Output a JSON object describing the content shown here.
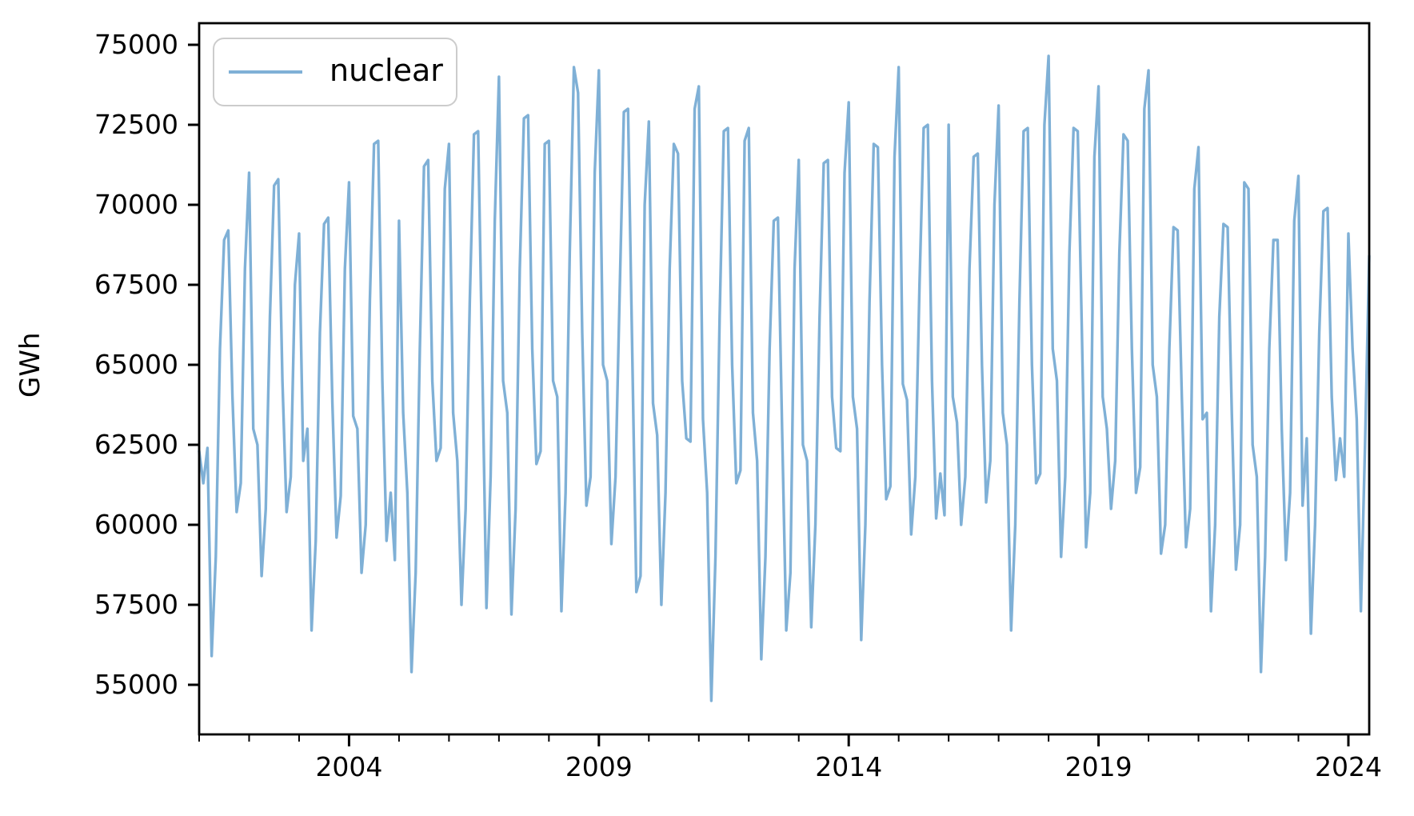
{
  "figure": {
    "background": "#ffffff",
    "ylabel": "GWh"
  },
  "legend": {
    "entries": [
      {
        "label": "nuclear",
        "color": "#7fb0d6"
      }
    ]
  },
  "chart_data": {
    "type": "line",
    "title": "",
    "xlabel": "",
    "ylabel": "GWh",
    "grid": false,
    "legend_position": "upper-left",
    "line_color": "#7fb0d6",
    "frequency": "monthly",
    "x_start": "2001-01",
    "x_end": "2024-06",
    "xlim": [
      2001.0,
      2024.4167
    ],
    "ylim": [
      53450,
      75675
    ],
    "y_ticks": [
      55000,
      57500,
      60000,
      62500,
      65000,
      67500,
      70000,
      72500,
      75000
    ],
    "x_major_ticks": [
      2004,
      2009,
      2014,
      2019,
      2024
    ],
    "x_minor_ticks": [
      2001,
      2002,
      2003,
      2005,
      2006,
      2007,
      2008,
      2010,
      2011,
      2012,
      2013,
      2015,
      2016,
      2017,
      2018,
      2020,
      2021,
      2022,
      2023
    ],
    "series": [
      {
        "name": "nuclear",
        "values": [
          62300,
          61300,
          62400,
          55900,
          59000,
          65500,
          68900,
          69200,
          64000,
          60400,
          61300,
          68000,
          71000,
          63000,
          62500,
          58400,
          60500,
          66500,
          70600,
          70800,
          64500,
          60400,
          61500,
          67500,
          69100,
          62000,
          63000,
          56700,
          59500,
          66000,
          69400,
          69600,
          63800,
          59600,
          60900,
          68000,
          70700,
          63400,
          63000,
          58500,
          60000,
          67000,
          71900,
          72000,
          64500,
          59500,
          61000,
          58900,
          69500,
          63500,
          61000,
          55400,
          58500,
          65500,
          71200,
          71400,
          64500,
          62000,
          62400,
          70500,
          71900,
          63500,
          62000,
          57500,
          60500,
          67000,
          72200,
          72300,
          65000,
          57400,
          61500,
          69500,
          74000,
          64500,
          63500,
          57200,
          60500,
          68000,
          72700,
          72800,
          65500,
          61900,
          62300,
          71900,
          72000,
          64500,
          64000,
          57300,
          61000,
          68500,
          74300,
          73500,
          66000,
          60600,
          61500,
          71000,
          74200,
          65000,
          64500,
          59400,
          61500,
          67300,
          72900,
          73000,
          65500,
          57900,
          58400,
          70000,
          72600,
          63800,
          62800,
          57500,
          61000,
          68000,
          71900,
          71600,
          64500,
          62700,
          62600,
          73000,
          73700,
          63300,
          61000,
          54500,
          59000,
          66500,
          72300,
          72400,
          65000,
          61300,
          61700,
          72000,
          72400,
          63500,
          62000,
          55800,
          59000,
          65500,
          69500,
          69600,
          63000,
          56700,
          58500,
          68000,
          71400,
          62500,
          62000,
          56800,
          60000,
          66500,
          71300,
          71400,
          64000,
          62400,
          62300,
          71000,
          73200,
          64000,
          63000,
          56400,
          60000,
          67000,
          71900,
          71800,
          65000,
          60800,
          61200,
          71500,
          74300,
          64400,
          63900,
          59700,
          61500,
          67500,
          72400,
          72500,
          64500,
          60200,
          61600,
          60300,
          72500,
          64000,
          63200,
          60000,
          61500,
          68000,
          71500,
          71600,
          65000,
          60700,
          62000,
          70000,
          73100,
          63500,
          62500,
          56700,
          60000,
          67000,
          72300,
          72400,
          65000,
          61300,
          61600,
          72500,
          74650,
          65500,
          64500,
          59000,
          61500,
          68500,
          72400,
          72300,
          66000,
          59300,
          61000,
          71500,
          73700,
          64000,
          63000,
          60500,
          62000,
          68500,
          72200,
          72000,
          65500,
          61000,
          61800,
          73000,
          74200,
          65000,
          64000,
          59100,
          60000,
          65500,
          69300,
          69200,
          64000,
          59300,
          60500,
          70500,
          71800,
          63300,
          63500,
          57300,
          60000,
          66500,
          69400,
          69300,
          63500,
          58600,
          60000,
          70700,
          70500,
          62500,
          61500,
          55400,
          59000,
          65500,
          68900,
          68900,
          63000,
          58900,
          61000,
          69500,
          70900,
          60600,
          62700,
          56600,
          60000,
          66000,
          69800,
          69900,
          64000,
          61400,
          62700,
          61500,
          69100,
          65500,
          63300,
          57300,
          62500,
          68400
        ]
      }
    ]
  }
}
